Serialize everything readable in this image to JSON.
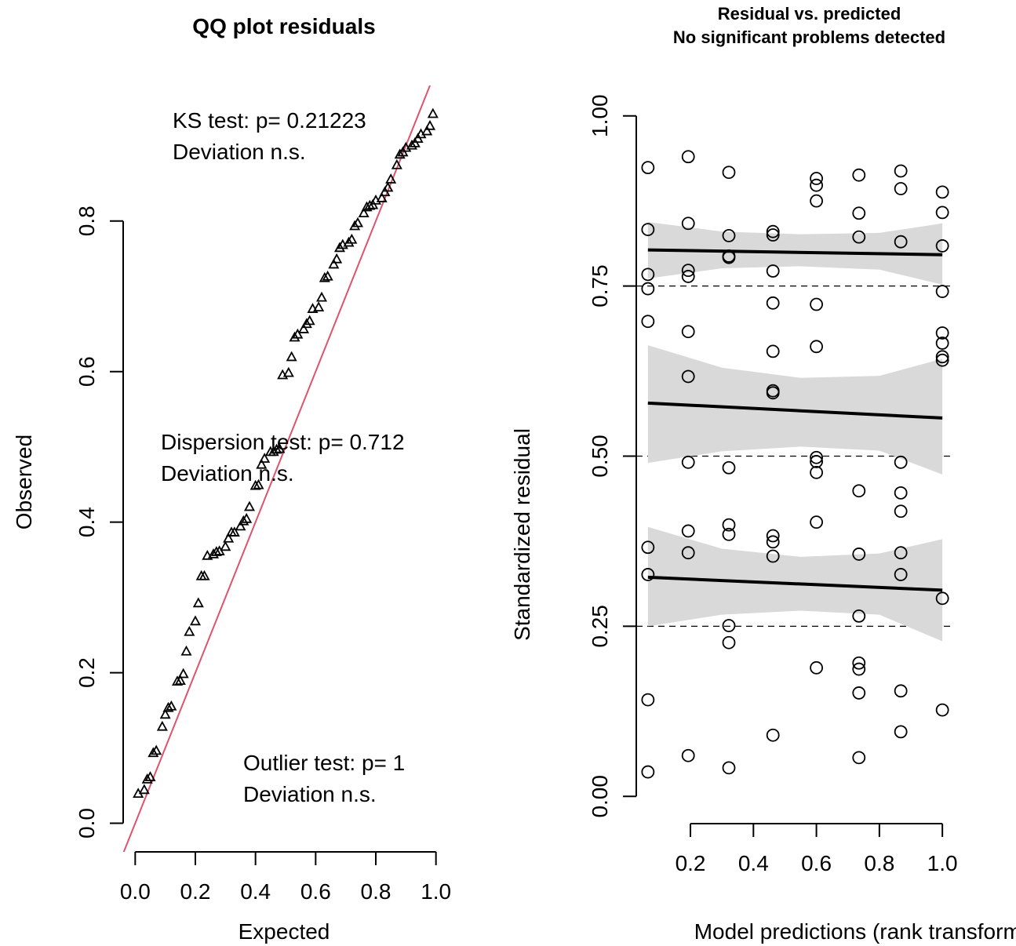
{
  "chart_data": [
    {
      "type": "scatter",
      "title": "QQ plot residuals",
      "xlabel": "Expected",
      "ylabel": "Observed",
      "xlim": [
        -0.04,
        1.04
      ],
      "ylim": [
        -0.038,
        0.98
      ],
      "xticks": [
        {
          "value": 0,
          "label": "0.0"
        },
        0.2,
        0.4,
        0.6,
        0.8,
        {
          "value": 1,
          "label": "1.0"
        }
      ],
      "yticks": [
        {
          "value": 0,
          "label": "0.0"
        },
        0.2,
        0.4,
        0.6,
        0.8
      ],
      "marker": "triangle",
      "color": "#000000",
      "reference_line_color": "#df536b",
      "annotations": [
        "KS test: p= 0.21223",
        "Deviation  n.s.",
        "Dispersion test: p= 0.712",
        "Deviation  n.s.",
        "Outlier test: p= 1",
        "Deviation  n.s."
      ],
      "x": [
        0.01,
        0.03,
        0.04,
        0.05,
        0.06,
        0.07,
        0.09,
        0.1,
        0.11,
        0.12,
        0.14,
        0.15,
        0.16,
        0.17,
        0.18,
        0.2,
        0.21,
        0.22,
        0.23,
        0.24,
        0.26,
        0.27,
        0.28,
        0.3,
        0.31,
        0.32,
        0.33,
        0.35,
        0.36,
        0.37,
        0.38,
        0.4,
        0.41,
        0.42,
        0.43,
        0.45,
        0.46,
        0.47,
        0.48,
        0.49,
        0.51,
        0.52,
        0.53,
        0.54,
        0.56,
        0.57,
        0.58,
        0.59,
        0.61,
        0.62,
        0.63,
        0.64,
        0.66,
        0.67,
        0.68,
        0.69,
        0.71,
        0.72,
        0.73,
        0.74,
        0.76,
        0.77,
        0.78,
        0.79,
        0.8,
        0.82,
        0.83,
        0.84,
        0.85,
        0.87,
        0.88,
        0.89,
        0.9,
        0.92,
        0.93,
        0.94,
        0.95,
        0.97,
        0.98,
        0.99
      ],
      "y": [
        0.039,
        0.044,
        0.058,
        0.061,
        0.093,
        0.096,
        0.128,
        0.144,
        0.153,
        0.155,
        0.188,
        0.189,
        0.198,
        0.228,
        0.254,
        0.268,
        0.292,
        0.328,
        0.328,
        0.355,
        0.357,
        0.36,
        0.361,
        0.367,
        0.378,
        0.386,
        0.386,
        0.394,
        0.401,
        0.404,
        0.42,
        0.448,
        0.449,
        0.476,
        0.484,
        0.493,
        0.493,
        0.496,
        0.497,
        0.595,
        0.598,
        0.619,
        0.645,
        0.649,
        0.656,
        0.663,
        0.667,
        0.683,
        0.685,
        0.698,
        0.724,
        0.726,
        0.742,
        0.749,
        0.764,
        0.768,
        0.771,
        0.775,
        0.793,
        0.797,
        0.81,
        0.818,
        0.82,
        0.821,
        0.827,
        0.83,
        0.838,
        0.844,
        0.855,
        0.874,
        0.888,
        0.891,
        0.897,
        0.9,
        0.903,
        0.909,
        0.915,
        0.919,
        0.926,
        0.942
      ]
    },
    {
      "type": "scatter",
      "title": [
        "Residual vs. predicted",
        "No significant problems detected"
      ],
      "xlabel": "Model predictions (rank transformed)",
      "ylabel": "Standardized residual",
      "xlim": [
        0.028,
        1.037
      ],
      "ylim": [
        -0.04,
        1.04
      ],
      "xticks": [
        0.2,
        0.4,
        0.6,
        0.8,
        {
          "value": 1,
          "label": "1.0"
        }
      ],
      "yticks": [
        {
          "value": 0,
          "label": "0.00"
        },
        0.25,
        {
          "value": 0.5,
          "label": "0.50"
        },
        0.75,
        {
          "value": 1,
          "label": "1.00"
        }
      ],
      "reference_lines": [
        0.25,
        0.5,
        0.75
      ],
      "marker": "circle",
      "color": "#000000",
      "band_color": "#d9d9d9",
      "x": [
        0.065,
        0.065,
        0.065,
        0.065,
        0.065,
        0.065,
        0.065,
        0.065,
        0.065,
        0.193,
        0.193,
        0.193,
        0.193,
        0.193,
        0.193,
        0.193,
        0.193,
        0.193,
        0.193,
        0.322,
        0.322,
        0.322,
        0.322,
        0.322,
        0.322,
        0.322,
        0.322,
        0.322,
        0.322,
        0.462,
        0.462,
        0.462,
        0.462,
        0.462,
        0.462,
        0.462,
        0.462,
        0.462,
        0.462,
        0.462,
        0.6,
        0.6,
        0.6,
        0.6,
        0.6,
        0.6,
        0.6,
        0.6,
        0.6,
        0.6,
        0.735,
        0.735,
        0.735,
        0.735,
        0.735,
        0.735,
        0.735,
        0.735,
        0.735,
        0.735,
        0.868,
        0.868,
        0.868,
        0.868,
        0.868,
        0.868,
        0.868,
        0.868,
        0.868,
        0.868,
        1.0,
        1.0,
        1.0,
        1.0,
        1.0,
        1.0,
        1.0,
        1.0,
        1.0,
        1.0
      ],
      "y": [
        0.924,
        0.833,
        0.767,
        0.746,
        0.698,
        0.366,
        0.326,
        0.142,
        0.036,
        0.94,
        0.842,
        0.773,
        0.764,
        0.683,
        0.617,
        0.491,
        0.39,
        0.358,
        0.06,
        0.917,
        0.824,
        0.794,
        0.792,
        0.483,
        0.399,
        0.385,
        0.251,
        0.226,
        0.042,
        0.83,
        0.825,
        0.772,
        0.725,
        0.654,
        0.596,
        0.593,
        0.383,
        0.374,
        0.353,
        0.09,
        0.908,
        0.898,
        0.875,
        0.723,
        0.661,
        0.498,
        0.492,
        0.476,
        0.403,
        0.189,
        0.913,
        0.857,
        0.822,
        0.449,
        0.356,
        0.265,
        0.196,
        0.187,
        0.152,
        0.057,
        0.919,
        0.893,
        0.815,
        0.491,
        0.446,
        0.419,
        0.358,
        0.326,
        0.155,
        0.095,
        0.888,
        0.858,
        0.809,
        0.742,
        0.681,
        0.666,
        0.646,
        0.641,
        0.291,
        0.127
      ],
      "quantiles": [
        {
          "x": [
            0.065,
            0.3,
            0.55,
            0.8,
            1.0
          ],
          "upper": [
            0.396,
            0.364,
            0.352,
            0.357,
            0.378
          ],
          "lower": [
            0.25,
            0.267,
            0.273,
            0.267,
            0.228
          ],
          "line_x": [
            0.065,
            1.0
          ],
          "line": [
            0.322,
            0.303
          ]
        },
        {
          "x": [
            0.065,
            0.3,
            0.55,
            0.8,
            1.0
          ],
          "upper": [
            0.663,
            0.63,
            0.615,
            0.618,
            0.643
          ],
          "lower": [
            0.49,
            0.507,
            0.514,
            0.508,
            0.473
          ],
          "line_x": [
            0.065,
            1.0
          ],
          "line": [
            0.578,
            0.556
          ]
        },
        {
          "x": [
            0.065,
            0.3,
            0.55,
            0.8,
            1.0
          ],
          "upper": [
            0.844,
            0.83,
            0.826,
            0.828,
            0.842
          ],
          "lower": [
            0.761,
            0.776,
            0.779,
            0.774,
            0.752
          ],
          "line_x": [
            0.065,
            1.0
          ],
          "line": [
            0.803,
            0.796
          ]
        }
      ]
    }
  ]
}
